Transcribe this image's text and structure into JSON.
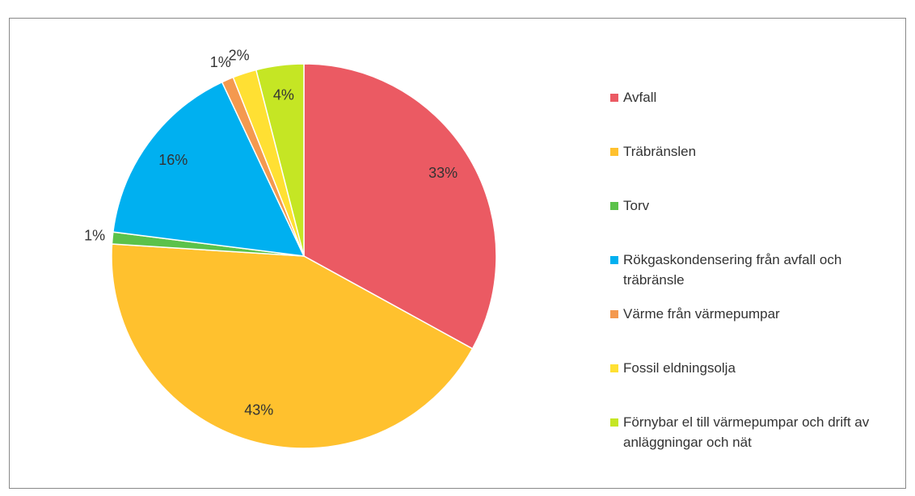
{
  "chart_data": {
    "type": "pie",
    "categories": [
      "Avfall",
      "Träbränslen",
      "Torv",
      "Rökgaskondensering från avfall och träbränsle",
      "Värme från värmepumpar",
      "Fossil eldningsolja",
      "Förnybar el till värmepumpar och drift av anläggningar och nät"
    ],
    "values": [
      33,
      43,
      1,
      16,
      1,
      2,
      4
    ],
    "value_labels": [
      "33%",
      "43%",
      "1%",
      "16%",
      "1%",
      "2%",
      "4%"
    ],
    "colors": [
      "#eb5a63",
      "#ffc12e",
      "#5bc24a",
      "#00b0f0",
      "#f4994f",
      "#ffe033",
      "#c5e624"
    ],
    "legend": "right"
  }
}
